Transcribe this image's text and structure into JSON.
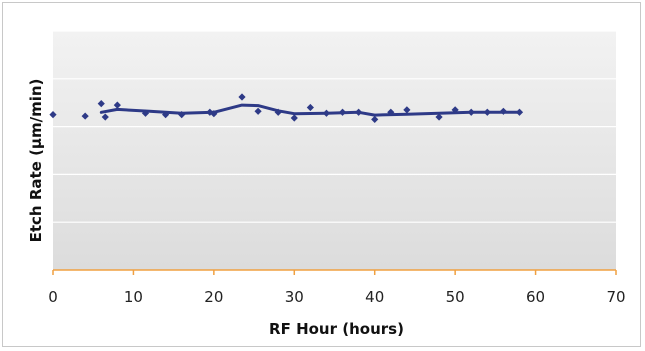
{
  "chart_data": {
    "type": "scatter",
    "title": "",
    "xlabel": "RF Hour (hours)",
    "ylabel": "Etch Rate (µm/min)",
    "xlim": [
      0,
      70
    ],
    "xticks": [
      "0",
      "10",
      "20",
      "30",
      "40",
      "50",
      "60",
      "70"
    ],
    "ylim": [
      0,
      5
    ],
    "yticks_shown": false,
    "grid": "horizontal",
    "legend": "none",
    "colors": {
      "series": "#2e3a87",
      "axis": "#f0a040",
      "grid": "#ffffff",
      "plot_bg_top": "#f2f2f2",
      "plot_bg_bottom": "#dcdcdc"
    },
    "series": [
      {
        "marker": "diamond",
        "points": [
          {
            "x": 0,
            "y": 3.25
          },
          {
            "x": 4,
            "y": 3.22
          },
          {
            "x": 6,
            "y": 3.48
          },
          {
            "x": 6.5,
            "y": 3.2
          },
          {
            "x": 8,
            "y": 3.45
          },
          {
            "x": 11.5,
            "y": 3.28
          },
          {
            "x": 14,
            "y": 3.25
          },
          {
            "x": 16,
            "y": 3.25
          },
          {
            "x": 19.5,
            "y": 3.3
          },
          {
            "x": 20,
            "y": 3.27
          },
          {
            "x": 23.5,
            "y": 3.62
          },
          {
            "x": 25.5,
            "y": 3.32
          },
          {
            "x": 28,
            "y": 3.3
          },
          {
            "x": 30,
            "y": 3.18
          },
          {
            "x": 32,
            "y": 3.4
          },
          {
            "x": 34,
            "y": 3.28
          },
          {
            "x": 36,
            "y": 3.3
          },
          {
            "x": 38,
            "y": 3.3
          },
          {
            "x": 40,
            "y": 3.15
          },
          {
            "x": 42,
            "y": 3.3
          },
          {
            "x": 44,
            "y": 3.35
          },
          {
            "x": 48,
            "y": 3.2
          },
          {
            "x": 50,
            "y": 3.35
          },
          {
            "x": 52,
            "y": 3.3
          },
          {
            "x": 54,
            "y": 3.3
          },
          {
            "x": 56,
            "y": 3.32
          },
          {
            "x": 58,
            "y": 3.3
          }
        ]
      }
    ],
    "trend_line": [
      {
        "x": 6,
        "y": 3.3
      },
      {
        "x": 8,
        "y": 3.36
      },
      {
        "x": 12,
        "y": 3.32
      },
      {
        "x": 16,
        "y": 3.28
      },
      {
        "x": 20,
        "y": 3.3
      },
      {
        "x": 23.5,
        "y": 3.45
      },
      {
        "x": 25.5,
        "y": 3.44
      },
      {
        "x": 28,
        "y": 3.33
      },
      {
        "x": 30,
        "y": 3.27
      },
      {
        "x": 34,
        "y": 3.28
      },
      {
        "x": 38,
        "y": 3.3
      },
      {
        "x": 40,
        "y": 3.24
      },
      {
        "x": 44,
        "y": 3.26
      },
      {
        "x": 48,
        "y": 3.28
      },
      {
        "x": 52,
        "y": 3.3
      },
      {
        "x": 56,
        "y": 3.3
      },
      {
        "x": 58,
        "y": 3.3
      }
    ]
  }
}
